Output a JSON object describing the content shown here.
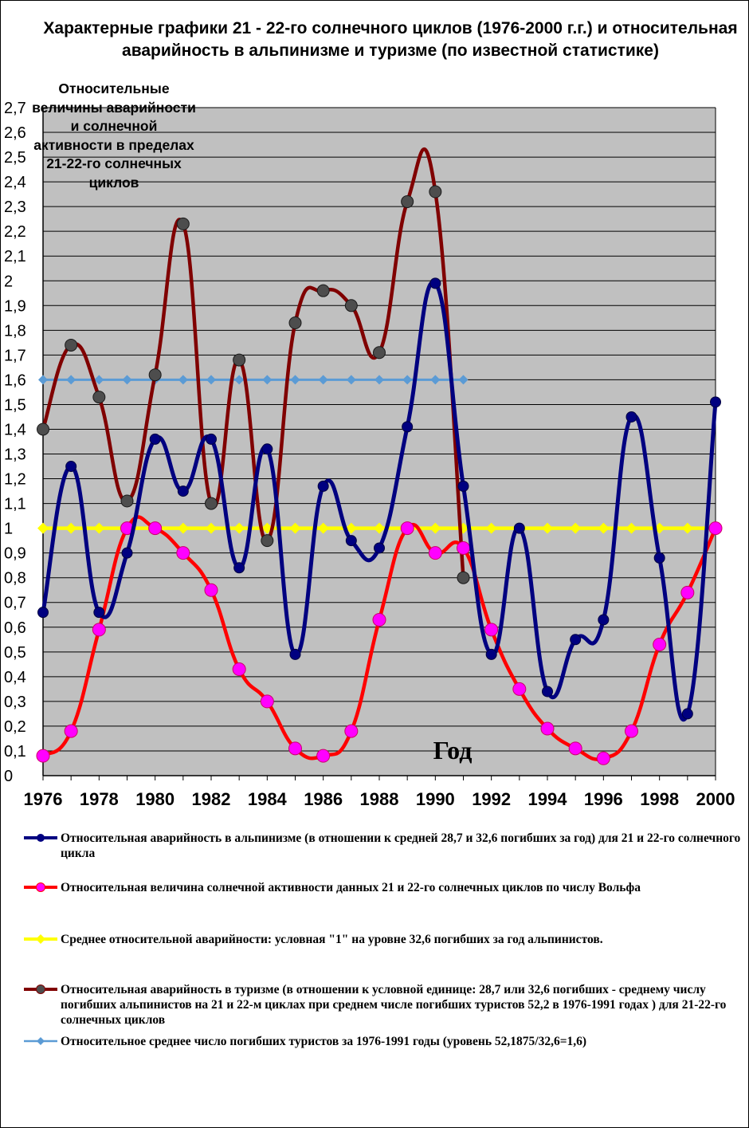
{
  "title": "Характерные графики  21 - 22-го солнечного циклов (1976-2000 г.г.) и относительная аварийность в  альпинизме и туризме (по известной статистике)",
  "y_axis_note": "Относительные величины аварийности и солнечной активности в пределах 21-22-го солнечных циклов",
  "colors": {
    "plot_bg": "#c0c0c0",
    "alpinism": "#000080",
    "solar": "#ff0000",
    "solar_marker": "#ff00ff",
    "mean": "#ffff00",
    "tourism": "#800000",
    "tourism_marker": "#4d4d4d",
    "tourist_mean": "#5b9bd5"
  },
  "chart_data": {
    "type": "line",
    "title": "Характерные графики  21 - 22-го солнечного циклов (1976-2000 г.г.) и относительная аварийность в  альпинизме и туризме (по известной статистике)",
    "xlabel": "Год",
    "ylabel": "Относительные величины аварийности и солнечной активности в пределах 21-22-го солнечных циклов",
    "xlim": [
      1976,
      2000
    ],
    "ylim": [
      0,
      2.7
    ],
    "x_ticks": [
      "1976",
      "1978",
      "1980",
      "1982",
      "1984",
      "1986",
      "1988",
      "1990",
      "1992",
      "1994",
      "1996",
      "1998",
      "2000"
    ],
    "y_ticks": [
      "0",
      "0,1",
      "0,2",
      "0,3",
      "0,4",
      "0,5",
      "0,6",
      "0,7",
      "0,8",
      "0,9",
      "1",
      "1,1",
      "1,2",
      "1,3",
      "1,4",
      "1,5",
      "1,6",
      "1,7",
      "1,8",
      "1,9",
      "2",
      "2,1",
      "2,2",
      "2,3",
      "2,4",
      "2,5",
      "2,6",
      "2,7"
    ],
    "grid": "horizontal",
    "legend_position": "bottom",
    "series": [
      {
        "key": "alpinism",
        "name": "Относительная аварийность в альпинизме (в отношении к средней 28,7 и 32,6 погибших за год) для 21 и  22-го солнечного цикла",
        "x": [
          1976,
          1977,
          1978,
          1979,
          1980,
          1981,
          1982,
          1983,
          1984,
          1985,
          1986,
          1987,
          1988,
          1989,
          1990,
          1991,
          1992,
          1993,
          1994,
          1995,
          1996,
          1997,
          1998,
          1999,
          2000
        ],
        "y": [
          0.66,
          1.25,
          0.66,
          0.9,
          1.36,
          1.15,
          1.36,
          0.84,
          1.32,
          0.49,
          1.17,
          0.95,
          0.92,
          1.41,
          1.99,
          1.17,
          0.49,
          1.0,
          0.34,
          0.55,
          0.63,
          1.45,
          0.88,
          0.25,
          1.51
        ]
      },
      {
        "key": "solar",
        "name": "Относительная величина солнечной активности данных 21 и 22-го солнечных циклов по числу Вольфа",
        "x": [
          1976,
          1977,
          1978,
          1979,
          1980,
          1981,
          1982,
          1983,
          1984,
          1985,
          1986,
          1987,
          1988,
          1989,
          1990,
          1991,
          1992,
          1993,
          1994,
          1995,
          1996,
          1997,
          1998,
          1999,
          2000
        ],
        "y": [
          0.08,
          0.18,
          0.59,
          1.0,
          1.0,
          0.9,
          0.75,
          0.43,
          0.3,
          0.11,
          0.08,
          0.18,
          0.63,
          1.0,
          0.9,
          0.92,
          0.59,
          0.35,
          0.19,
          0.11,
          0.07,
          0.18,
          0.53,
          0.74,
          1.0
        ]
      },
      {
        "key": "mean",
        "name": "Среднее относительной аварийности: условная \"1\" на уровне 32,6 погибших за год альпинистов.",
        "x": [
          1976,
          1977,
          1978,
          1979,
          1980,
          1981,
          1982,
          1983,
          1984,
          1985,
          1986,
          1987,
          1988,
          1989,
          1990,
          1991,
          1992,
          1993,
          1994,
          1995,
          1996,
          1997,
          1998,
          1999,
          2000
        ],
        "y": [
          1,
          1,
          1,
          1,
          1,
          1,
          1,
          1,
          1,
          1,
          1,
          1,
          1,
          1,
          1,
          1,
          1,
          1,
          1,
          1,
          1,
          1,
          1,
          1,
          1
        ]
      },
      {
        "key": "tourism",
        "name": "Относительная аварийность в туризме (в отношении к условной единице: 28,7 или 32,6 погибших - среднему числу погибших альпинистов на 21 и 22-м циклах  при среднем числе погибших туристов 52,2 в 1976-1991 годах ) для 21-22-го солнечных циклов",
        "x": [
          1976,
          1977,
          1978,
          1979,
          1980,
          1981,
          1982,
          1983,
          1984,
          1985,
          1986,
          1987,
          1988,
          1989,
          1990,
          1991
        ],
        "y": [
          1.4,
          1.74,
          1.53,
          1.11,
          1.62,
          2.23,
          1.1,
          1.68,
          0.95,
          1.83,
          1.96,
          1.9,
          1.71,
          2.32,
          2.36,
          0.8
        ]
      },
      {
        "key": "tourist_mean",
        "name": "Относительное среднее число  погибших туристов за 1976-1991 годы (уровень 52,1875/32,6=1,6)",
        "x": [
          1976,
          1977,
          1978,
          1979,
          1980,
          1981,
          1982,
          1983,
          1984,
          1985,
          1986,
          1987,
          1988,
          1989,
          1990,
          1991
        ],
        "y": [
          1.6,
          1.6,
          1.6,
          1.6,
          1.6,
          1.6,
          1.6,
          1.6,
          1.6,
          1.6,
          1.6,
          1.6,
          1.6,
          1.6,
          1.6,
          1.6
        ]
      }
    ]
  }
}
